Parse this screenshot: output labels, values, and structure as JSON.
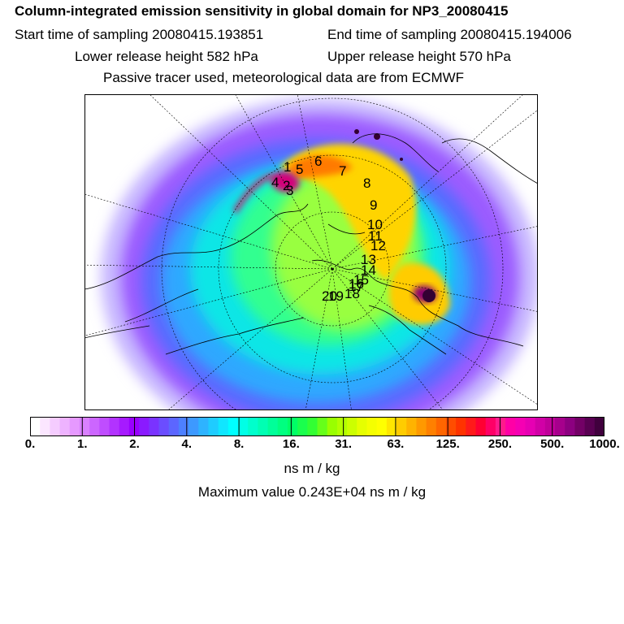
{
  "header": {
    "title": "Column-integrated emission sensitivity in global domain for NP3_20080415",
    "start_time": "Start time of sampling 20080415.193851",
    "end_time": "End time of sampling 20080415.194006",
    "lower_height": "Lower release height  582 hPa",
    "upper_height": "Upper release height  570 hPa",
    "tracer_note": "Passive tracer used, meteorological data are from ECMWF"
  },
  "map": {
    "projection": "north-polar-stereographic",
    "track_labels": [
      "1",
      "2",
      "3",
      "4",
      "5",
      "6",
      "7",
      "8",
      "9",
      "10",
      "11",
      "12",
      "13",
      "14",
      "15",
      "16",
      "17",
      "18",
      "19",
      "20"
    ]
  },
  "colorbar": {
    "tick_labels": [
      "0.",
      "1.",
      "2.",
      "4.",
      "8.",
      "16.",
      "31.",
      "63.",
      "125.",
      "250.",
      "500.",
      "1000."
    ],
    "colors": [
      "#ffffff",
      "#fbe6ff",
      "#f5ccff",
      "#eeb3ff",
      "#e699ff",
      "#d980ff",
      "#cc66ff",
      "#bf4dff",
      "#b233ff",
      "#a61aff",
      "#9900ff",
      "#8a1aff",
      "#7a33ff",
      "#6b4dff",
      "#5c66ff",
      "#4d80ff",
      "#3d99ff",
      "#2eb3ff",
      "#1fccff",
      "#10e6ff",
      "#00ffff",
      "#00ffe6",
      "#00ffcc",
      "#00ffb3",
      "#00ff99",
      "#00ff80",
      "#00ff66",
      "#1aff4d",
      "#33ff33",
      "#66ff1a",
      "#99ff00",
      "#b3ff00",
      "#ccff00",
      "#e6ff00",
      "#f5ff00",
      "#ffff00",
      "#ffe600",
      "#ffcc00",
      "#ffb300",
      "#ff9900",
      "#ff8000",
      "#ff6600",
      "#ff4d00",
      "#ff3300",
      "#ff1a1a",
      "#ff0033",
      "#ff0066",
      "#ff1a8c",
      "#ff00a6",
      "#f500b3",
      "#e600b3",
      "#d100a6",
      "#bf0099",
      "#a6008c",
      "#8c0080",
      "#730066",
      "#590052",
      "#40003d"
    ]
  },
  "units_label": "ns m / kg",
  "max_value": "Maximum value  0.243E+04 ns m / kg"
}
